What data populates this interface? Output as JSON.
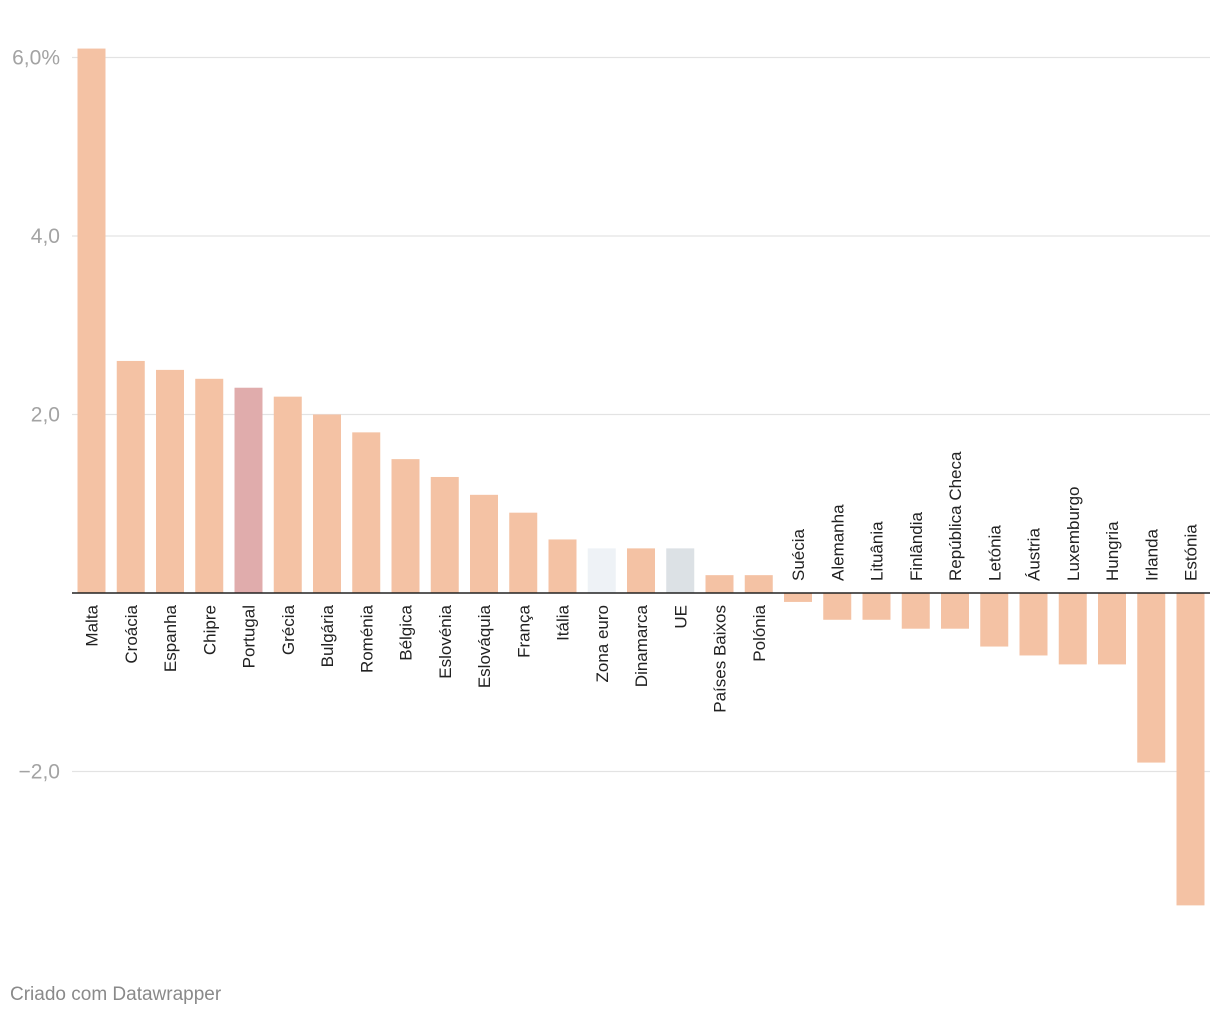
{
  "chart_data": {
    "type": "bar",
    "categories": [
      "Malta",
      "Croácia",
      "Espanha",
      "Chipre",
      "Portugal",
      "Grécia",
      "Bulgária",
      "Roménia",
      "Bélgica",
      "Eslovénia",
      "Eslováquia",
      "França",
      "Itália",
      "Zona euro",
      "Dinamarca",
      "UE",
      "Países Baixos",
      "Polónia",
      "Suécia",
      "Alemanha",
      "Lituânia",
      "Finlândia",
      "República Checa",
      "Letónia",
      "Áustria",
      "Luxemburgo",
      "Hungria",
      "Irlanda",
      "Estónia"
    ],
    "values": [
      6.1,
      2.6,
      2.5,
      2.4,
      2.3,
      2.2,
      2.0,
      1.8,
      1.5,
      1.3,
      1.1,
      0.9,
      0.6,
      0.5,
      0.5,
      0.5,
      0.2,
      0.2,
      -0.1,
      -0.3,
      -0.3,
      -0.4,
      -0.4,
      -0.6,
      -0.7,
      -0.8,
      -0.8,
      -1.9,
      -3.5
    ],
    "colors": [
      "#f4c2a4",
      "#f4c2a4",
      "#f4c2a4",
      "#f4c2a4",
      "#e0acac",
      "#f4c2a4",
      "#f4c2a4",
      "#f4c2a4",
      "#f4c2a4",
      "#f4c2a4",
      "#f4c2a4",
      "#f4c2a4",
      "#f4c2a4",
      "#eef2f6",
      "#f4c2a4",
      "#dce1e5",
      "#f4c2a4",
      "#f4c2a4",
      "#f4c2a4",
      "#f4c2a4",
      "#f4c2a4",
      "#f4c2a4",
      "#f4c2a4",
      "#f4c2a4",
      "#f4c2a4",
      "#f4c2a4",
      "#f4c2a4",
      "#f4c2a4",
      "#f4c2a4"
    ],
    "yticks": [
      {
        "value": 6,
        "label": "6,0%"
      },
      {
        "value": 4,
        "label": "4,0"
      },
      {
        "value": 2,
        "label": "2,0"
      },
      {
        "value": -2,
        "label": "−2,0"
      }
    ],
    "ylim": [
      -3.6,
      6.2
    ],
    "grid": true,
    "title": "",
    "xlabel": "",
    "ylabel": ""
  },
  "credit": "Criado com Datawrapper"
}
